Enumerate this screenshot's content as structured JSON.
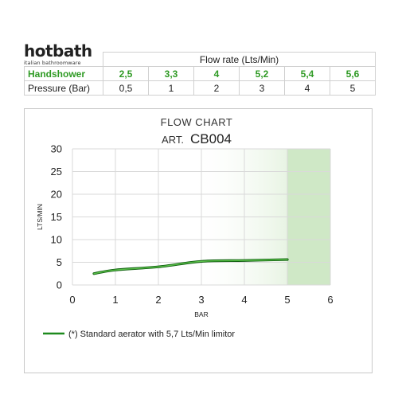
{
  "logo": {
    "name": "hotbath",
    "tagline": "italian bathroomware"
  },
  "table": {
    "header": "Flow rate (Lts/Min)",
    "rows": [
      {
        "label": "Handshower",
        "values": [
          "2,5",
          "3,3",
          "4",
          "5,2",
          "5,4",
          "5,6"
        ]
      },
      {
        "label": "Pressure (Bar)",
        "values": [
          "0,5",
          "1",
          "2",
          "3",
          "4",
          "5"
        ]
      }
    ]
  },
  "colors": {
    "accent": "#2e9a23",
    "line": "#1e8a1e",
    "grid": "#d9d9d9",
    "fill": "#cfe8c6"
  },
  "chart_data": {
    "type": "line",
    "title": "FLOW CHART",
    "subtitle_prefix": "ART.",
    "subtitle_code": "CB004",
    "xlabel": "BAR",
    "ylabel": "LTS/MIN",
    "xlim": [
      0,
      6
    ],
    "ylim": [
      0,
      30
    ],
    "xticks": [
      0,
      1,
      2,
      3,
      4,
      5,
      6
    ],
    "yticks": [
      0,
      5,
      10,
      15,
      20,
      25,
      30
    ],
    "grid": true,
    "series": [
      {
        "name": "(*) Standard aerator with 5,7 Lts/Min limitor",
        "x": [
          0.5,
          1,
          2,
          3,
          4,
          5
        ],
        "y": [
          2.5,
          3.3,
          4,
          5.2,
          5.4,
          5.6
        ]
      }
    ],
    "legend": "bottom-left"
  }
}
